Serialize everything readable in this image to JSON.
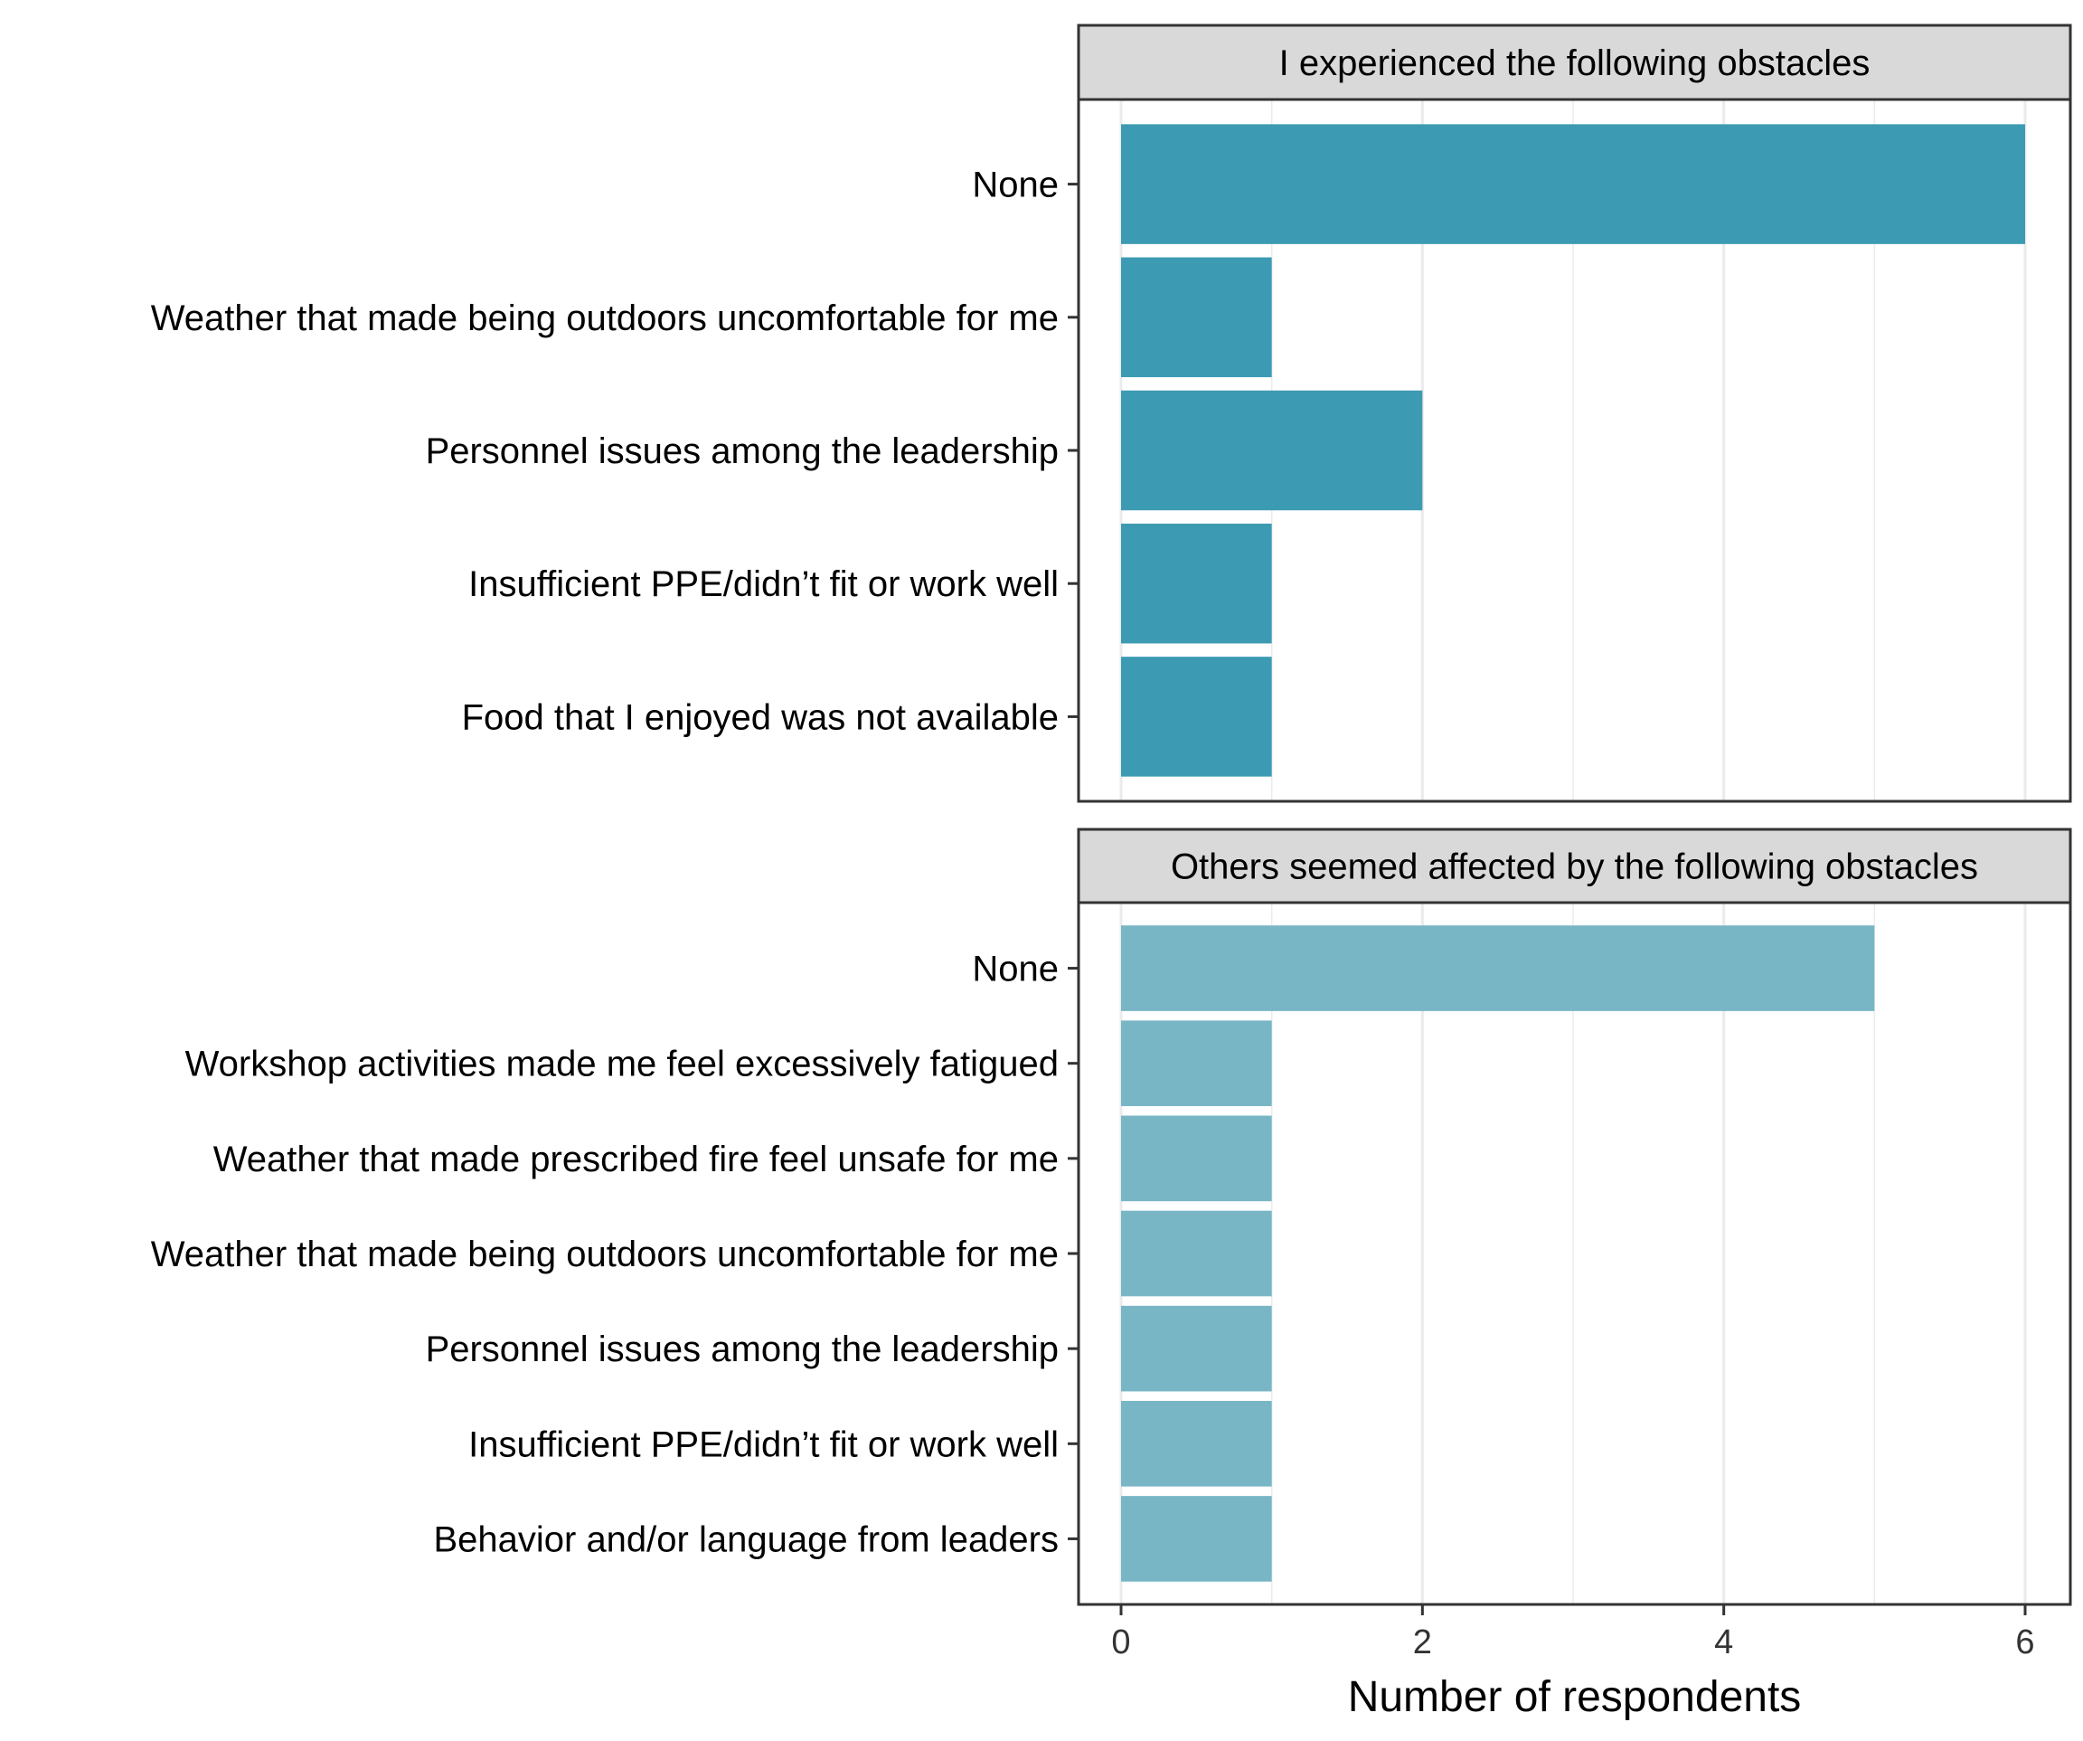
{
  "chart_data": {
    "type": "bar",
    "orientation": "horizontal",
    "grid": true,
    "xlabel": "Number of respondents",
    "xlim": [
      -0.3,
      6.2
    ],
    "xticks": [
      0,
      2,
      4,
      6
    ],
    "panels": [
      {
        "title": "I experienced the following obstacles",
        "color": "#3C9BB3",
        "categories": [
          "None",
          "Weather that made being outdoors uncomfortable for me",
          "Personnel issues among the leadership",
          "Insufficient PPE/didn’t fit or work well",
          "Food that I enjoyed was not available"
        ],
        "values": [
          6,
          1,
          2,
          1,
          1
        ]
      },
      {
        "title": "Others seemed affected by the following obstacles",
        "color": "#78B6C6",
        "categories": [
          "None",
          "Workshop activities made me feel excessively fatigued",
          "Weather that made prescribed fire feel unsafe for me",
          "Weather that made being outdoors uncomfortable for me",
          "Personnel issues among the leadership",
          "Insufficient PPE/didn’t fit or work well",
          "Behavior and/or language from leaders"
        ],
        "values": [
          5,
          1,
          1,
          1,
          1,
          1,
          1
        ]
      }
    ]
  }
}
